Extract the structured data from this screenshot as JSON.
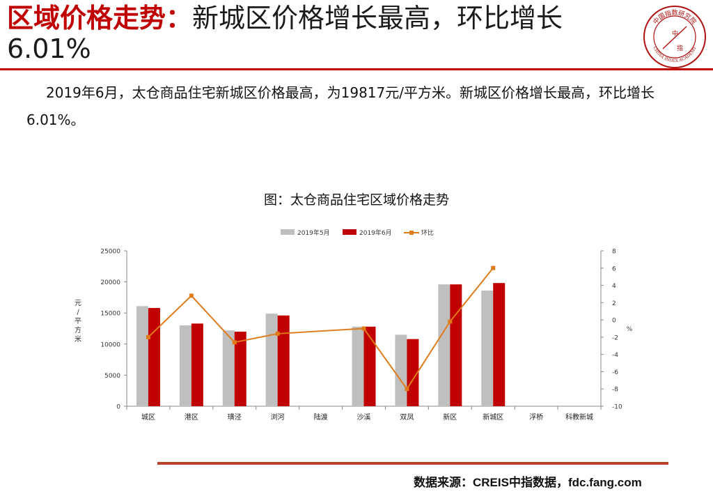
{
  "header": {
    "title_accent": "区域价格走势：",
    "title_rest": "新城区价格增长最高，环比增长6.01%"
  },
  "logo": {
    "text": "中国指数研究院",
    "subtext": "CHINA INDEX ACADEMY",
    "center_top": "中",
    "center_bottom": "指"
  },
  "body_text": "2019年6月，太仓商品住宅新城区价格最高，为19817元/平方米。新城区价格增长最高，环比增长6.01%。",
  "chart_heading": "图：太仓商品住宅区域价格走势",
  "colors": {
    "accent": "#c00000",
    "bar_may": "#bfbfbf",
    "bar_june": "#c00000",
    "line_mom": "#e07b1a"
  },
  "chart_data": {
    "type": "bar",
    "categories": [
      "城区",
      "港区",
      "璜泾",
      "浏河",
      "陆渡",
      "沙溪",
      "双凤",
      "新区",
      "新城区",
      "浮桥",
      "科教新城"
    ],
    "series": [
      {
        "name": "2019年5月",
        "type": "bar",
        "axis": "left",
        "values": [
          16100,
          13000,
          12200,
          14900,
          null,
          12800,
          11500,
          19600,
          18600,
          null,
          null
        ]
      },
      {
        "name": "2019年6月",
        "type": "bar",
        "axis": "left",
        "values": [
          15800,
          13300,
          12000,
          14600,
          null,
          12800,
          10800,
          19600,
          19817,
          null,
          null
        ]
      },
      {
        "name": "环比",
        "type": "line",
        "axis": "right",
        "values": [
          -2.0,
          2.8,
          -2.6,
          -1.6,
          null,
          -1.0,
          -8.0,
          -0.2,
          6.01,
          null,
          null
        ]
      }
    ],
    "ylim": [
      0,
      25000
    ],
    "yticks": [
      "0",
      "5000",
      "10000",
      "15000",
      "20000",
      "25000"
    ],
    "y2lim": [
      -10,
      8
    ],
    "y2ticks": [
      "-10",
      "-8",
      "-6",
      "-4",
      "-2",
      "0",
      "2",
      "4",
      "6",
      "8"
    ],
    "ylabel": "元/平方米",
    "y2label": "%",
    "legend_position": "top-center",
    "grid": false
  },
  "source": "数据来源：CREIS中指数据，fdc.fang.com"
}
